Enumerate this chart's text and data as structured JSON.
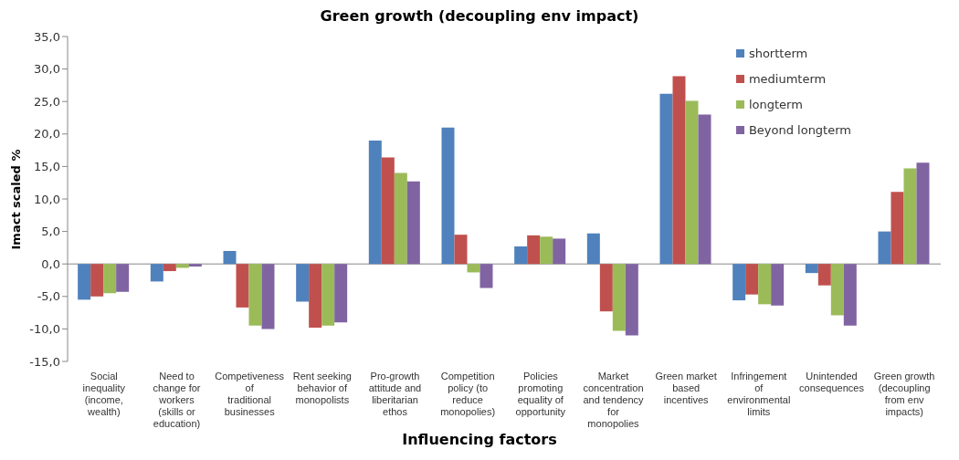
{
  "chart_data": {
    "type": "bar",
    "title": "Green growth (decoupling env impact)",
    "xlabel": "Influencing factors",
    "ylabel": "Imact scaled %",
    "categories": [
      "Social inequality (income, wealth)",
      "Need to change for workers (skills or education)",
      "Competiveness of traditional businesses",
      "Rent seeking behavior of monopolists",
      "Pro-growth attitude and liberitarian ethos",
      "Competition policy (to reduce monopolies)",
      "Policies promoting equality of opportunity",
      "Market concentration and tendency for monopolies",
      "Green market based incentives",
      "Infringement of environmental limits",
      "Unintended consequences",
      "Green growth (decoupling from env impacts)"
    ],
    "series": [
      {
        "name": "shortterm",
        "color": "#4f81bd",
        "values": [
          -5.5,
          -2.7,
          2.0,
          -5.8,
          19.0,
          21.0,
          2.7,
          4.7,
          26.2,
          -5.6,
          -1.4,
          5.0
        ]
      },
      {
        "name": "mediumterm",
        "color": "#c0504d",
        "values": [
          -5.0,
          -1.1,
          -6.7,
          -9.8,
          16.4,
          4.5,
          4.4,
          -7.3,
          28.9,
          -4.7,
          -3.3,
          11.1
        ]
      },
      {
        "name": "longterm",
        "color": "#9bbb59",
        "values": [
          -4.5,
          -0.6,
          -9.5,
          -9.5,
          14.0,
          -1.3,
          4.2,
          -10.3,
          25.1,
          -6.2,
          -7.9,
          14.7
        ]
      },
      {
        "name": "Beyond longterm",
        "color": "#8064a2",
        "values": [
          -4.3,
          -0.4,
          -10.0,
          -9.0,
          12.7,
          -3.7,
          3.9,
          -11.0,
          23.0,
          -6.4,
          -9.5,
          15.6
        ]
      }
    ],
    "ylim": [
      -15,
      35
    ],
    "yticks": [
      {
        "value": -15,
        "label": "-15,0"
      },
      {
        "value": -10,
        "label": "-10,0"
      },
      {
        "value": -5,
        "label": "-5,0"
      },
      {
        "value": 0,
        "label": "0,0"
      },
      {
        "value": 5,
        "label": "5,0"
      },
      {
        "value": 10,
        "label": "10,0"
      },
      {
        "value": 15,
        "label": "15,0"
      },
      {
        "value": 20,
        "label": "20,0"
      },
      {
        "value": 25,
        "label": "25,0"
      },
      {
        "value": 30,
        "label": "30,0"
      },
      {
        "value": 35,
        "label": "35,0"
      }
    ],
    "legend": "top right"
  }
}
